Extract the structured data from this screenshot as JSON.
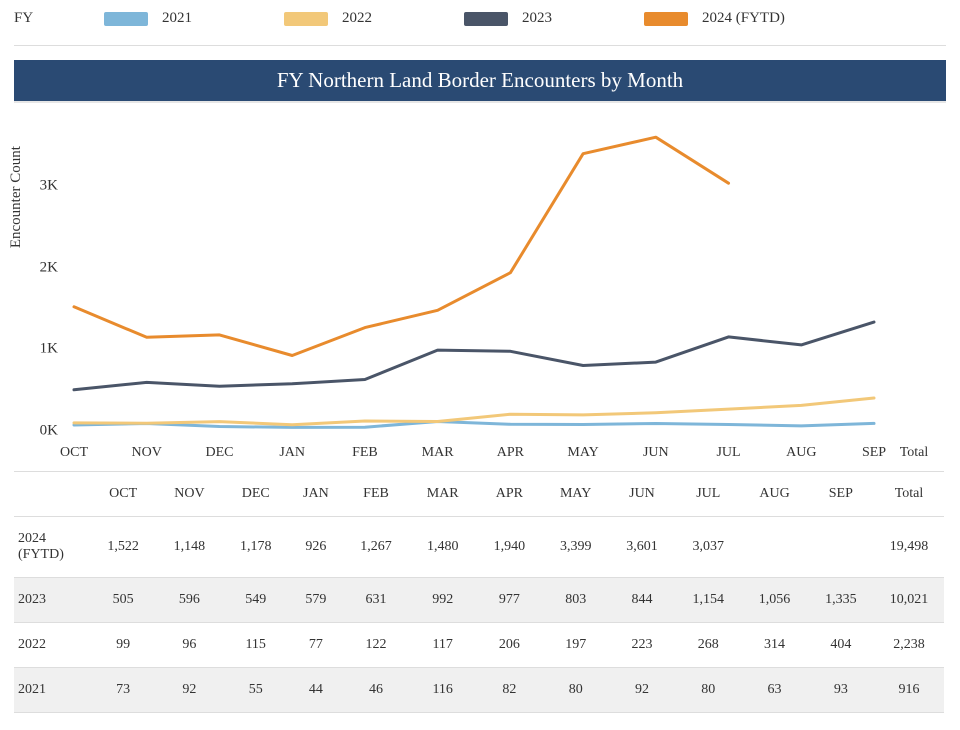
{
  "legend": {
    "group_label": "FY",
    "items": [
      {
        "label": "2021",
        "color": "#7eb6d9"
      },
      {
        "label": "2022",
        "color": "#f2c879"
      },
      {
        "label": "2023",
        "color": "#4a5568"
      },
      {
        "label": "2024 (FYTD)",
        "color": "#e88b2d"
      }
    ]
  },
  "chart": {
    "type": "line",
    "title": "FY Northern Land Border Encounters by Month",
    "background_color": "#ffffff",
    "title_bar_bg": "#2a4a73",
    "title_bar_color": "#ffffff",
    "title_fontsize": 21,
    "ylabel": "Encounter Count",
    "label_fontsize": 15,
    "tick_fontsize": 15,
    "categories": [
      "OCT",
      "NOV",
      "DEC",
      "JAN",
      "FEB",
      "MAR",
      "APR",
      "MAY",
      "JUN",
      "JUL",
      "AUG",
      "SEP"
    ],
    "ylim": [
      0,
      3800
    ],
    "yticks": [
      0,
      1000,
      2000,
      3000
    ],
    "ytick_labels": [
      "0K",
      "1K",
      "2K",
      "3K"
    ],
    "line_width": 3,
    "series": [
      {
        "key": "2021",
        "color": "#7eb6d9",
        "values": [
          73,
          92,
          55,
          44,
          46,
          116,
          82,
          80,
          92,
          80,
          63,
          93
        ]
      },
      {
        "key": "2022",
        "color": "#f2c879",
        "values": [
          99,
          96,
          115,
          77,
          122,
          117,
          206,
          197,
          223,
          268,
          314,
          404
        ]
      },
      {
        "key": "2023",
        "color": "#4a5568",
        "values": [
          505,
          596,
          549,
          579,
          631,
          992,
          977,
          803,
          844,
          1154,
          1056,
          1335
        ]
      },
      {
        "key": "2024 (FYTD)",
        "color": "#e88b2d",
        "values": [
          1522,
          1148,
          1178,
          926,
          1267,
          1480,
          1940,
          3399,
          3601,
          3037,
          null,
          null
        ]
      }
    ]
  },
  "table": {
    "columns": [
      "OCT",
      "NOV",
      "DEC",
      "JAN",
      "FEB",
      "MAR",
      "APR",
      "MAY",
      "JUN",
      "JUL",
      "AUG",
      "SEP"
    ],
    "total_label": "Total",
    "rows": [
      {
        "label": "2024 (FYTD)",
        "values": [
          "1,522",
          "1,148",
          "1,178",
          "926",
          "1,267",
          "1,480",
          "1,940",
          "3,399",
          "3,601",
          "3,037",
          "",
          ""
        ],
        "total": "19,498"
      },
      {
        "label": "2023",
        "values": [
          "505",
          "596",
          "549",
          "579",
          "631",
          "992",
          "977",
          "803",
          "844",
          "1,154",
          "1,056",
          "1,335"
        ],
        "total": "10,021"
      },
      {
        "label": "2022",
        "values": [
          "99",
          "96",
          "115",
          "77",
          "122",
          "117",
          "206",
          "197",
          "223",
          "268",
          "314",
          "404"
        ],
        "total": "2,238"
      },
      {
        "label": "2021",
        "values": [
          "73",
          "92",
          "55",
          "44",
          "46",
          "116",
          "82",
          "80",
          "92",
          "80",
          "63",
          "93"
        ],
        "total": "916"
      }
    ],
    "row_alt_bg": "#f0f0f0",
    "border_color": "#dddddd"
  }
}
